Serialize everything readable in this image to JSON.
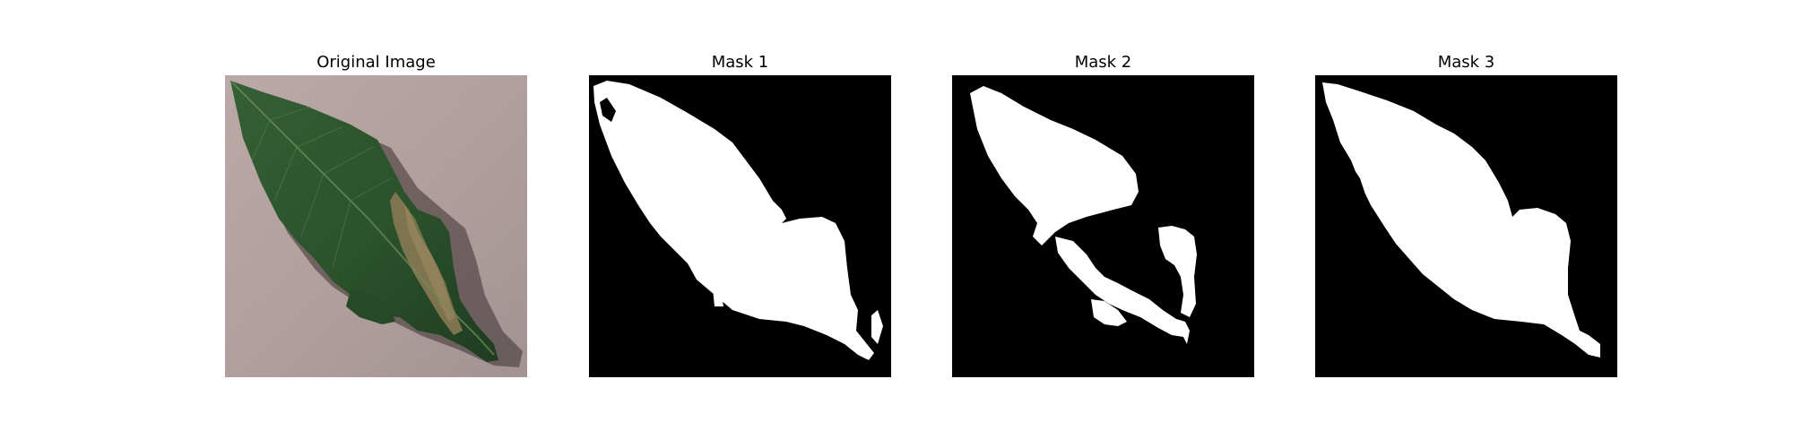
{
  "figure": {
    "panels": [
      {
        "title": "Original Image",
        "kind": "photo"
      },
      {
        "title": "Mask 1",
        "kind": "mask"
      },
      {
        "title": "Mask 2",
        "kind": "mask"
      },
      {
        "title": "Mask 3",
        "kind": "mask"
      }
    ]
  },
  "colors": {
    "background": "#ffffff",
    "mask_foreground": "#ffffff",
    "mask_background": "#000000",
    "photo_surface": "#bba9a6",
    "leaf_green": "#2f5a2f",
    "lesion_brown": "#8a7a55"
  }
}
